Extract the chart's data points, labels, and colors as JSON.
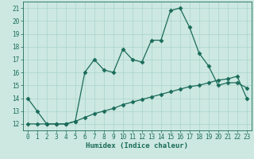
{
  "xlabel": "Humidex (Indice chaleur)",
  "background_color": "#cce8e0",
  "line_color": "#1a6b5a",
  "x_values": [
    0,
    1,
    2,
    3,
    4,
    5,
    6,
    7,
    8,
    9,
    10,
    11,
    12,
    13,
    14,
    15,
    16,
    17,
    18,
    19,
    20,
    21,
    22,
    23
  ],
  "y_line1": [
    14,
    13,
    12,
    12,
    12,
    12.2,
    16,
    17,
    16.2,
    16,
    17.8,
    17,
    16.8,
    18.5,
    18.5,
    20.8,
    21,
    19.5,
    17.5,
    16.5,
    15,
    15.2,
    15.2,
    14.8
  ],
  "y_line2": [
    12,
    12,
    12,
    12,
    12,
    12.2,
    12.5,
    12.8,
    13,
    13.2,
    13.5,
    13.7,
    13.9,
    14.1,
    14.3,
    14.5,
    14.7,
    14.9,
    15.0,
    15.2,
    15.4,
    15.5,
    15.7,
    14.0
  ],
  "ylim": [
    11.5,
    21.5
  ],
  "xlim": [
    -0.5,
    23.5
  ],
  "yticks": [
    12,
    13,
    14,
    15,
    16,
    17,
    18,
    19,
    20,
    21
  ],
  "xticks": [
    0,
    1,
    2,
    3,
    4,
    5,
    6,
    7,
    8,
    9,
    10,
    11,
    12,
    13,
    14,
    15,
    16,
    17,
    18,
    19,
    20,
    21,
    22,
    23
  ],
  "grid_color": "#aad4cc",
  "marker": "D",
  "marker_size": 2.5,
  "tick_fontsize": 5.5,
  "xlabel_fontsize": 6.5,
  "linewidth": 0.9
}
